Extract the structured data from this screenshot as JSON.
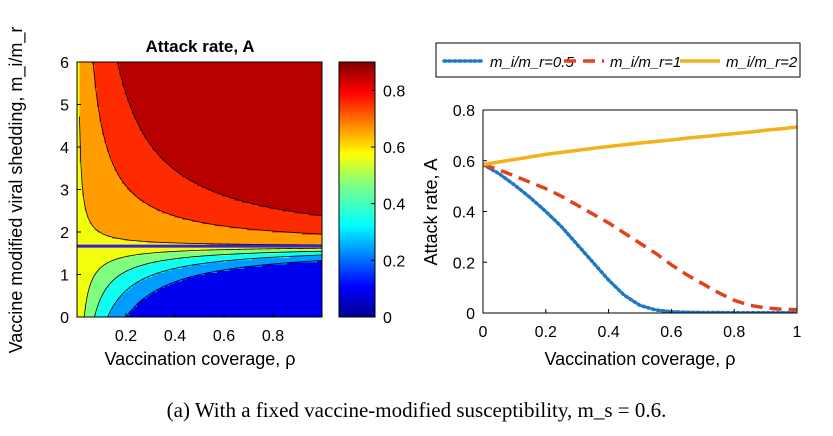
{
  "caption": "(a) With a fixed vaccine-modified susceptibility, m_s = 0.6.",
  "chart_data": [
    {
      "type": "heatmap",
      "subtype": "filled-contour",
      "title": "Attack rate, A",
      "xlabel": "Vaccination coverage, ρ",
      "ylabel": "Vaccine modified viral shedding, m_i/m_r",
      "xlim": [
        0,
        1
      ],
      "ylim": [
        0,
        6
      ],
      "xticks": [
        0.2,
        0.4,
        0.6,
        0.8
      ],
      "yticks": [
        0,
        1,
        2,
        3,
        4,
        5,
        6
      ],
      "colorbar": {
        "range": [
          0,
          0.9
        ],
        "ticks": [
          0,
          0.2,
          0.4,
          0.6,
          0.8
        ],
        "colormap": "jet"
      },
      "contour_levels": [
        0.2,
        0.3,
        0.4,
        0.5,
        0.6,
        0.7,
        0.8
      ],
      "threshold_line": {
        "y": 1.667,
        "color": "#3a1fd6"
      },
      "model": {
        "A0": 0.585,
        "vmax": 0.9
      }
    },
    {
      "type": "line",
      "xlabel": "Vaccination coverage, ρ",
      "ylabel": "Attack rate, A",
      "xlim": [
        0,
        1
      ],
      "ylim": [
        0,
        0.8
      ],
      "xticks": [
        0,
        0.2,
        0.4,
        0.6,
        0.8,
        1
      ],
      "yticks": [
        0,
        0.2,
        0.4,
        0.6,
        0.8
      ],
      "legend": {
        "placement": "top",
        "orientation": "horizontal"
      },
      "x": [
        0,
        0.05,
        0.1,
        0.15,
        0.2,
        0.25,
        0.3,
        0.35,
        0.4,
        0.45,
        0.5,
        0.55,
        0.6,
        0.65,
        0.7,
        0.75,
        0.8,
        0.85,
        0.9,
        0.95,
        1.0
      ],
      "series": [
        {
          "name": "m_i/m_r=0.5",
          "color": "#1f77c4",
          "style": "dotted",
          "values": [
            0.585,
            0.55,
            0.505,
            0.455,
            0.4,
            0.34,
            0.27,
            0.2,
            0.13,
            0.07,
            0.03,
            0.012,
            0.005,
            0.003,
            0.002,
            0.002,
            0.001,
            0.001,
            0.001,
            0.001,
            0.001
          ]
        },
        {
          "name": "m_i/m_r=1",
          "color": "#e2431e",
          "style": "dashed",
          "values": [
            0.585,
            0.565,
            0.54,
            0.515,
            0.49,
            0.46,
            0.425,
            0.39,
            0.355,
            0.315,
            0.275,
            0.235,
            0.19,
            0.15,
            0.115,
            0.08,
            0.05,
            0.03,
            0.02,
            0.015,
            0.013
          ]
        },
        {
          "name": "m_i/m_r=2",
          "color": "#f2b21b",
          "style": "solid",
          "values": [
            0.585,
            0.595,
            0.605,
            0.615,
            0.625,
            0.633,
            0.641,
            0.649,
            0.656,
            0.663,
            0.67,
            0.676,
            0.682,
            0.689,
            0.695,
            0.701,
            0.707,
            0.713,
            0.72,
            0.726,
            0.733
          ]
        }
      ]
    }
  ]
}
